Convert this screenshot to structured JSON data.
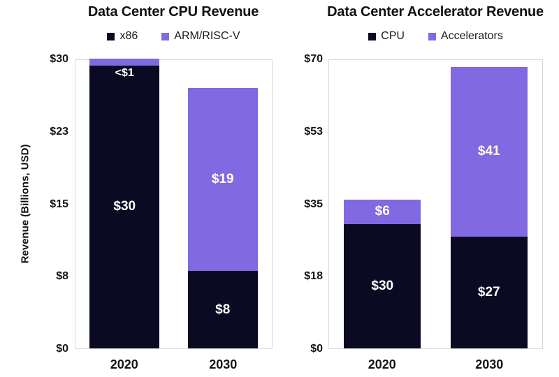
{
  "figure": {
    "background": "#ffffff"
  },
  "colors": {
    "dark": "#0a0b23",
    "purple": "#8169e2",
    "plot_border": "#d8d8d8",
    "text": "#141414",
    "bar_label": "#ffffff"
  },
  "chart_data": [
    {
      "type": "bar",
      "stacked": true,
      "title": "Data Center CPU Revenue",
      "xlabel": "",
      "ylabel": "Revenue (Billions, USD)",
      "ylim": [
        0,
        30
      ],
      "grid": false,
      "legend_position": "top",
      "yticks": [
        {
          "value": 0,
          "label": "$0"
        },
        {
          "value": 7.5,
          "label": "$8"
        },
        {
          "value": 15,
          "label": "$15"
        },
        {
          "value": 22.5,
          "label": "$23"
        },
        {
          "value": 30,
          "label": "$30"
        }
      ],
      "categories": [
        "2020",
        "2030"
      ],
      "series": [
        {
          "name": "x86",
          "color": "dark",
          "values": [
            30,
            8
          ],
          "labels": [
            "$30",
            "$8"
          ]
        },
        {
          "name": "ARM/RISC-V",
          "color": "purple",
          "values": [
            0.7,
            19
          ],
          "labels": [
            "<$1",
            "$19"
          ]
        }
      ]
    },
    {
      "type": "bar",
      "stacked": true,
      "title": "Data Center Accelerator Revenue",
      "xlabel": "",
      "ylabel": "",
      "ylim": [
        0,
        70
      ],
      "grid": false,
      "legend_position": "top",
      "yticks": [
        {
          "value": 0,
          "label": "$0"
        },
        {
          "value": 17.5,
          "label": "$18"
        },
        {
          "value": 35,
          "label": "$35"
        },
        {
          "value": 52.5,
          "label": "$53"
        },
        {
          "value": 70,
          "label": "$70"
        }
      ],
      "categories": [
        "2020",
        "2030"
      ],
      "series": [
        {
          "name": "CPU",
          "color": "dark",
          "values": [
            30,
            27
          ],
          "labels": [
            "$30",
            "$27"
          ]
        },
        {
          "name": "Accelerators",
          "color": "purple",
          "values": [
            6,
            41
          ],
          "labels": [
            "$6",
            "$41"
          ]
        }
      ]
    }
  ]
}
